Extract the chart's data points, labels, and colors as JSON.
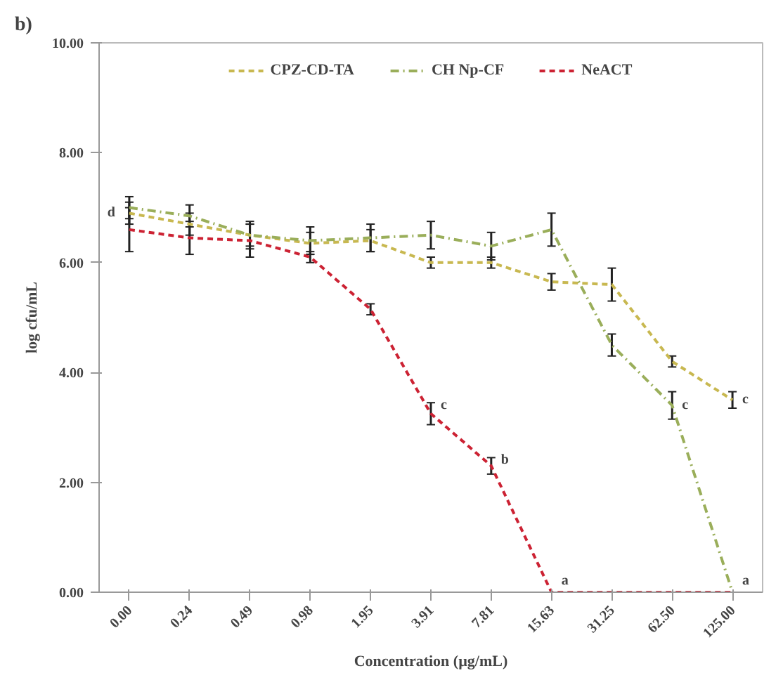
{
  "chart_data": {
    "type": "line",
    "categories": [
      "0.00",
      "0.24",
      "0.49",
      "0.98",
      "1.95",
      "3.91",
      "7.81",
      "15.63",
      "31.25",
      "62.50",
      "125.00"
    ],
    "xlabel": "Concentration (µg/mL)",
    "ylabel": "log cfu/mL",
    "ylim": [
      0,
      10
    ],
    "yticks": [
      {
        "value": 0,
        "label": "0.00"
      },
      {
        "value": 2,
        "label": "2.00"
      },
      {
        "value": 4,
        "label": "4.00"
      },
      {
        "value": 6,
        "label": "6.00"
      },
      {
        "value": 8,
        "label": "8.00"
      },
      {
        "value": 10,
        "label": "10.00"
      }
    ],
    "legend": "top",
    "grid": false,
    "marker": "none",
    "series": [
      {
        "name": "CPZ-CD-TA",
        "color": "#c8b850",
        "line_style": "dashed",
        "values": [
          6.9,
          6.7,
          6.5,
          6.35,
          6.4,
          6.0,
          6.0,
          5.65,
          5.6,
          4.2,
          3.5
        ],
        "errors": [
          0.2,
          0.2,
          0.2,
          0.2,
          0.2,
          0.1,
          0.1,
          0.15,
          0.3,
          0.1,
          0.15
        ]
      },
      {
        "name": "CH Np-CF",
        "color": "#9aae5a",
        "line_style": "dashdot",
        "values": [
          7.0,
          6.85,
          6.5,
          6.4,
          6.45,
          6.5,
          6.3,
          6.6,
          4.5,
          3.4,
          0
        ],
        "errors": [
          0.2,
          0.2,
          0.25,
          0.25,
          0.25,
          0.25,
          0.25,
          0.3,
          0.2,
          0.25,
          null
        ]
      },
      {
        "name": "NeACT",
        "color": "#cc2233",
        "line_style": "dashed",
        "values": [
          6.6,
          6.45,
          6.4,
          6.1,
          5.15,
          3.25,
          2.3,
          0,
          0,
          0,
          0
        ],
        "errors": [
          0.4,
          0.3,
          0.3,
          0.1,
          0.1,
          0.2,
          0.15,
          null,
          null,
          null,
          null
        ]
      }
    ],
    "annotations": [
      "b)",
      {
        "text": "d",
        "x": "0.00",
        "y": 6.9
      },
      {
        "text": "c",
        "x": "3.91",
        "y": 3.4
      },
      {
        "text": "b",
        "x": "7.81",
        "y": 2.4
      },
      {
        "text": "a",
        "x": "15.63",
        "y": 0.2
      },
      {
        "text": "c",
        "x": "62.50",
        "y": 3.4
      },
      {
        "text": "a",
        "x": "125.00",
        "y": 0.2
      },
      {
        "text": "c",
        "x": "125.00",
        "y": 3.5
      }
    ]
  }
}
